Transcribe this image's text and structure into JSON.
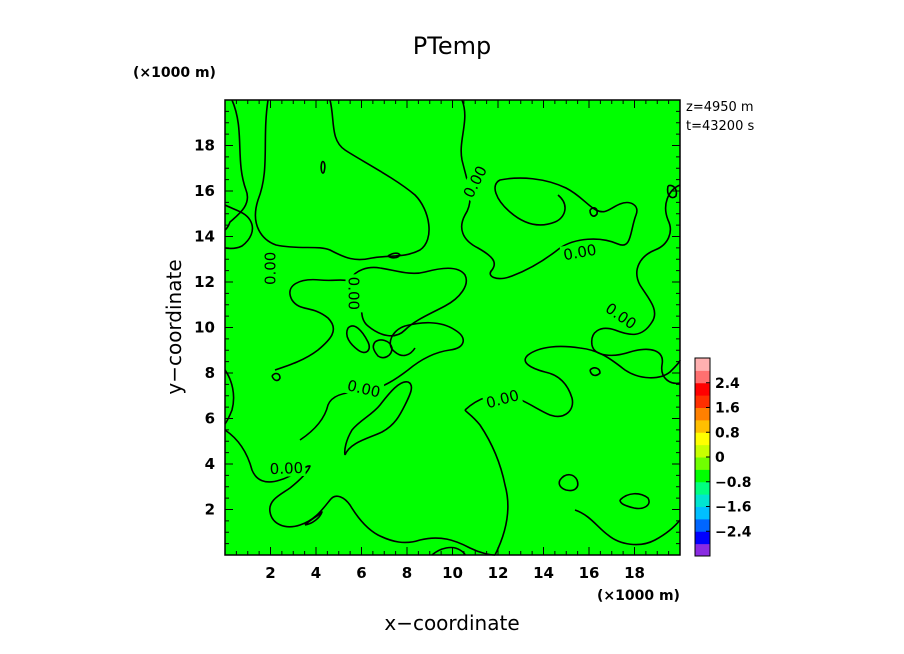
{
  "chart_data": {
    "type": "heatmap",
    "title": "PTemp",
    "xlabel": "x−coordinate",
    "ylabel": "y−coordinate",
    "x_unit": "(×1000 m)",
    "y_unit": "(×1000 m)",
    "xlim": [
      0,
      20
    ],
    "ylim": [
      0,
      20
    ],
    "x_ticks": [
      2,
      4,
      6,
      8,
      10,
      12,
      14,
      16,
      18
    ],
    "y_ticks": [
      2,
      4,
      6,
      8,
      10,
      12,
      14,
      16,
      18
    ],
    "info": [
      "z=4950  m",
      "t=43200  s"
    ],
    "field_value": 0,
    "field_color": "#00ff00",
    "contour_level": "0.00",
    "contour_labels": [
      {
        "text": "0.00",
        "x": 2.0,
        "y": 12.6,
        "angle": 90
      },
      {
        "text": "0.00",
        "x": 5.65,
        "y": 11.5,
        "angle": -90
      },
      {
        "text": "0.00",
        "x": 11.0,
        "y": 16.4,
        "angle": 63
      },
      {
        "text": "0.00",
        "x": 15.6,
        "y": 13.3,
        "angle": 10
      },
      {
        "text": "0.00",
        "x": 17.4,
        "y": 10.5,
        "angle": -35
      },
      {
        "text": "0.00",
        "x": 6.1,
        "y": 7.3,
        "angle": -13
      },
      {
        "text": "0.00",
        "x": 12.2,
        "y": 6.85,
        "angle": 15
      },
      {
        "text": "0.00",
        "x": 2.7,
        "y": 3.8,
        "angle": 2
      }
    ],
    "colorbar": {
      "ticks": [
        "2.4",
        "1.6",
        "0.8",
        "0",
        "−0.8",
        "−1.6",
        "−2.4"
      ],
      "range": [
        -3.2,
        3.2
      ],
      "colors": [
        "#8a2be2",
        "#0000ff",
        "#0066ff",
        "#00bfff",
        "#00e5d0",
        "#00ff80",
        "#00ff00",
        "#70ff00",
        "#c8ff00",
        "#ffff00",
        "#ffbf00",
        "#ff8000",
        "#ff3000",
        "#ff0000",
        "#ff7070",
        "#ffb0b0"
      ]
    }
  }
}
